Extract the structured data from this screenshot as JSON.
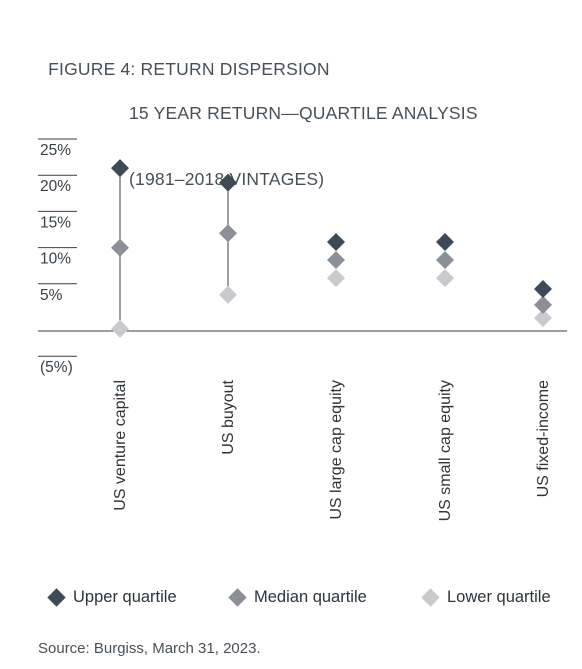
{
  "title": {
    "line1": "FIGURE 4: RETURN DISPERSION",
    "line2": "15 YEAR RETURN—QUARTILE ANALYSIS",
    "line3": "(1981–2018 VINTAGES)"
  },
  "colors": {
    "upper": "#3f4a57",
    "median": "#8c9096",
    "lower": "#c8cacd",
    "axis": "#3a3f44",
    "stem": "#5a5f66"
  },
  "chart_data": {
    "type": "scatter",
    "categories": [
      "US venture capital",
      "US buyout",
      "US large cap equity",
      "US small cap equity",
      "US fixed-income"
    ],
    "series": [
      {
        "name": "Upper quartile",
        "values": [
          22.5,
          20.5,
          12.3,
          12.3,
          5.8
        ]
      },
      {
        "name": "Median quartile",
        "values": [
          11.5,
          13.5,
          9.8,
          9.8,
          3.6
        ]
      },
      {
        "name": "Lower quartile",
        "values": [
          0.3,
          5.0,
          7.3,
          7.3,
          1.8
        ]
      }
    ],
    "yticks": [
      25,
      20,
      15,
      10,
      5,
      -5
    ],
    "ytick_labels": [
      "25%",
      "20%",
      "15%",
      "10%",
      "5%",
      "(5%)"
    ],
    "ylim": [
      -7,
      25
    ],
    "baseline": 0,
    "stems": [
      true,
      true,
      false,
      false,
      false
    ]
  },
  "legend": {
    "upper": "Upper quartile",
    "median": "Median quartile",
    "lower": "Lower quartile"
  },
  "source": "Source: Burgiss, March 31, 2023."
}
